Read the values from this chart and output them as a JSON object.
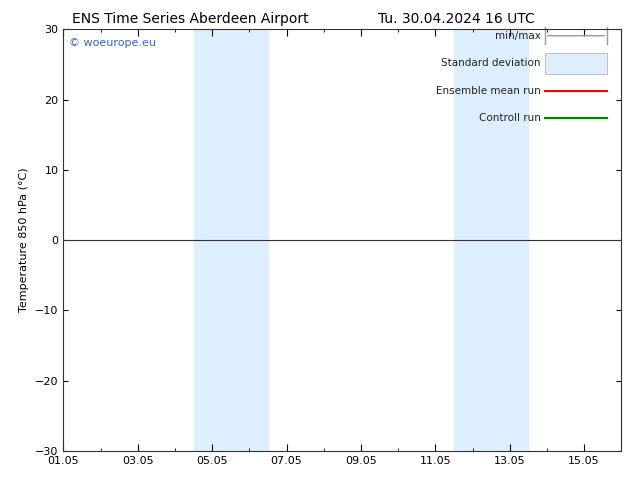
{
  "title_left": "ENS Time Series Aberdeen Airport",
  "title_right": "Tu. 30.04.2024 16 UTC",
  "ylabel": "Temperature 850 hPa (°C)",
  "ylim": [
    -30,
    30
  ],
  "yticks": [
    -30,
    -20,
    -10,
    0,
    10,
    20,
    30
  ],
  "xlim": [
    0,
    15
  ],
  "xtick_labels": [
    "01.05",
    "03.05",
    "05.05",
    "07.05",
    "09.05",
    "11.05",
    "13.05",
    "15.05"
  ],
  "xtick_positions": [
    0,
    2,
    4,
    6,
    8,
    10,
    12,
    14
  ],
  "shaded_bands": [
    {
      "x_start": 3.5,
      "x_end": 4.5,
      "color": "#ddeeff"
    },
    {
      "x_start": 4.5,
      "x_end": 5.5,
      "color": "#ddeeff"
    },
    {
      "x_start": 10.5,
      "x_end": 11.5,
      "color": "#ddeeff"
    },
    {
      "x_start": 11.5,
      "x_end": 12.5,
      "color": "#ddeeff"
    }
  ],
  "watermark_text": "© woeurope.eu",
  "watermark_color": "#3366cc",
  "legend_labels": [
    "min/max",
    "Standard deviation",
    "Ensemble mean run",
    "Controll run"
  ],
  "legend_line_colors": [
    "#999999",
    "#cccccc",
    "#ff0000",
    "#008800"
  ],
  "zero_line_color": "#333333",
  "background_color": "#ffffff",
  "plot_bg_color": "#ffffff",
  "title_fontsize": 10,
  "label_fontsize": 8,
  "tick_fontsize": 8,
  "legend_fontsize": 7.5
}
